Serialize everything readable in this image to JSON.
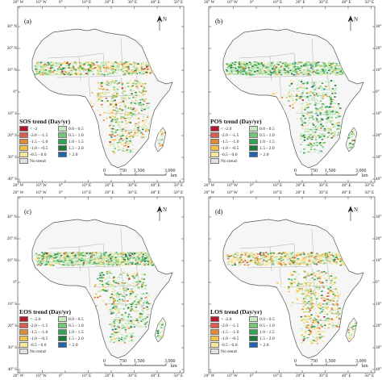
{
  "figure": {
    "panels": [
      {
        "id": "sos",
        "label": "(a)",
        "legend_title": "SOS trend (Day/yr)",
        "left_labels": [
          "< -2",
          "-2.0 - -1.5",
          "-1.5 - -1.0",
          "-1.0 - -0.5",
          "-0.5 - 0.0",
          "No trend"
        ],
        "right_labels": [
          "0.0 - 0.5",
          "0.5 - 1.0",
          "1.0 - 1.5",
          "1.5 - 2.0",
          "> 2.0"
        ]
      },
      {
        "id": "pos",
        "label": "(b)",
        "legend_title": "POS trend (Day/yr)",
        "left_labels": [
          "< -2.0",
          "-2.0 - -1.5",
          "-1.5 - -1.0",
          "-1.0 - -0.5",
          "-0.5 - 0.0",
          "No trend"
        ],
        "right_labels": [
          "0.0 - 0.5",
          "0.5 - 1.0",
          "1.0 - 1.5",
          "1.5 - 2.0",
          "> 2.0"
        ]
      },
      {
        "id": "eos",
        "label": "(c)",
        "legend_title": "EOS trend (Day/yr)",
        "left_labels": [
          "< -2.0",
          "-2.0 - -1.5",
          "-1.5 - -1.0",
          "-1.0 - -0.5",
          "-0.5 - 0.0",
          "No trend"
        ],
        "right_labels": [
          "0.0 - 0.5",
          "0.5 - 1.0",
          "1.0 - 1.5",
          "1.5 - 2.0",
          "> 2.0"
        ]
      },
      {
        "id": "los",
        "label": "(d)",
        "legend_title": "LOS trend (Day/yr)",
        "left_labels": [
          "< -2.0",
          "-2.0 - -1.5",
          "-1.5 - -1.0",
          "-1.0 - -0.5",
          "-0.5 - 0.0",
          "No trend"
        ],
        "right_labels": [
          "0.0 - 0.5",
          "0.5 - 1.0",
          "1.0 - 1.5",
          "1.5 - 2.0",
          "> 2.0"
        ]
      }
    ],
    "lon_labels": [
      "20° W",
      "10° W",
      "0°",
      "10° E",
      "20° E",
      "30° E",
      "40° E",
      "50° E"
    ],
    "lat_labels": [
      "30° N",
      "20° N",
      "10° N",
      "0°",
      "10° S",
      "20° S",
      "30° S",
      "40° S"
    ],
    "scale_labels": [
      "0",
      "750",
      "1,500",
      "3,000",
      "km"
    ],
    "north_label": "N",
    "colors": {
      "neg": [
        "#b2182b",
        "#d6604d",
        "#e08a3c",
        "#f0c24a",
        "#f7e79a"
      ],
      "pos": [
        "#c7e9c0",
        "#74c476",
        "#31a354",
        "#1b7837",
        "#2166ac"
      ],
      "no_trend": "#e0e0e0",
      "land_outline": "#555555"
    }
  }
}
